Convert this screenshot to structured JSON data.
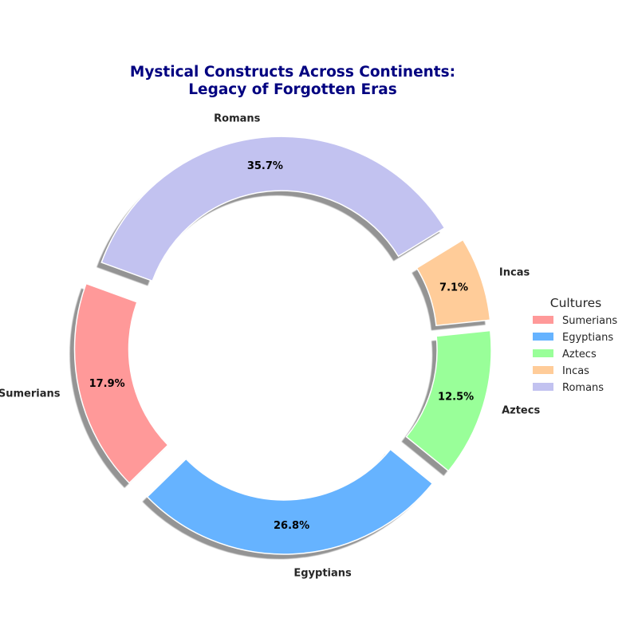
{
  "chart_data": {
    "type": "pie",
    "variant": "donut",
    "title_lines": [
      "Mystical Constructs Across Continents:",
      "Legacy of Forgotten Eras"
    ],
    "categories": [
      "Sumerians",
      "Egyptians",
      "Aztecs",
      "Incas",
      "Romans"
    ],
    "values": [
      17.9,
      26.8,
      12.5,
      7.1,
      35.7
    ],
    "percent_labels": [
      "17.9%",
      "26.8%",
      "12.5%",
      "7.1%",
      "35.7%"
    ],
    "colors": [
      "#ff9999",
      "#66b3ff",
      "#99ff99",
      "#ffcc99",
      "#c2c2f0"
    ],
    "exploded": true,
    "shadow": true,
    "legend": {
      "title": "Cultures",
      "placement": "right",
      "entries": [
        "Sumerians",
        "Egyptians",
        "Aztecs",
        "Incas",
        "Romans"
      ]
    },
    "title_color": "#000080"
  }
}
